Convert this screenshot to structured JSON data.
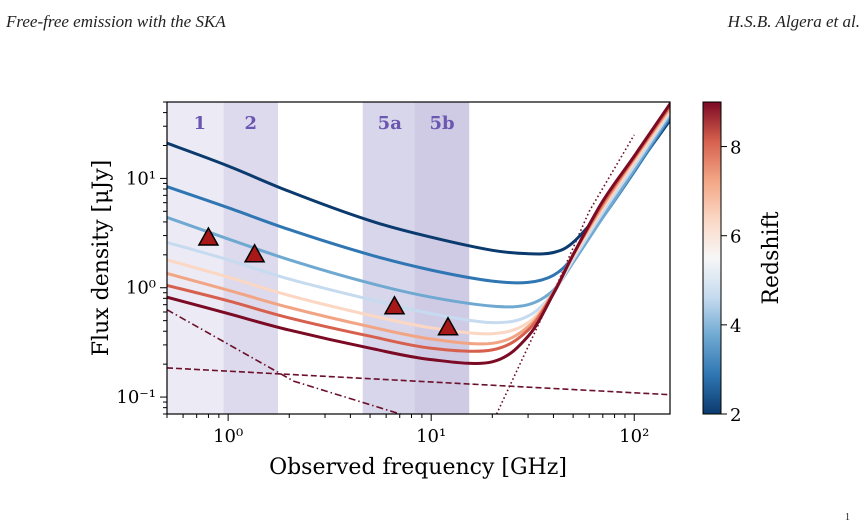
{
  "header": {
    "left": "Free-free emission with the SKA",
    "right": "H.S.B. Algera et al."
  },
  "page_mark": "1",
  "chart_data": {
    "type": "line",
    "xscale": "log",
    "yscale": "log",
    "xlabel": "Observed frequency [GHz]",
    "ylabel": "Flux density [μJy]",
    "xlim": [
      0.5,
      150
    ],
    "ylim": [
      0.07,
      50
    ],
    "xticks": [
      {
        "value": 1,
        "label": "10⁰"
      },
      {
        "value": 10,
        "label": "10¹"
      },
      {
        "value": 100,
        "label": "10²"
      }
    ],
    "yticks": [
      {
        "value": 0.1,
        "label": "10⁻¹"
      },
      {
        "value": 1,
        "label": "10⁰"
      },
      {
        "value": 10,
        "label": "10¹"
      }
    ],
    "bands": [
      {
        "label": "1",
        "range": [
          0.35,
          1.05
        ],
        "color": "#ecebf5"
      },
      {
        "label": "2",
        "range": [
          0.95,
          1.76
        ],
        "color": "#dcdaec"
      },
      {
        "label": "5a",
        "range": [
          4.6,
          8.5
        ],
        "color": "#d8d6ea"
      },
      {
        "label": "5b",
        "range": [
          8.3,
          15.4
        ],
        "color": "#cfcbe5"
      }
    ],
    "band_label_color": "#6b57b0",
    "series": [
      {
        "z": 2,
        "color": "#0b3a6e",
        "values": [
          [
            0.5,
            21
          ],
          [
            1,
            13
          ],
          [
            2,
            7.6
          ],
          [
            5,
            4.1
          ],
          [
            10,
            2.9
          ],
          [
            20,
            2.2
          ],
          [
            30,
            2.05
          ],
          [
            40,
            2.1
          ],
          [
            50,
            2.6
          ],
          [
            70,
            5.2
          ],
          [
            100,
            12
          ],
          [
            150,
            34
          ]
        ]
      },
      {
        "z": 3,
        "color": "#2f76b2",
        "values": [
          [
            0.5,
            8.4
          ],
          [
            1,
            5.4
          ],
          [
            2,
            3.4
          ],
          [
            5,
            2.0
          ],
          [
            10,
            1.45
          ],
          [
            20,
            1.15
          ],
          [
            30,
            1.12
          ],
          [
            40,
            1.3
          ],
          [
            50,
            1.9
          ],
          [
            70,
            4.4
          ],
          [
            100,
            11.5
          ],
          [
            150,
            36
          ]
        ]
      },
      {
        "z": 4,
        "color": "#6fa9d2",
        "values": [
          [
            0.5,
            4.4
          ],
          [
            1,
            2.8
          ],
          [
            2,
            1.8
          ],
          [
            5,
            1.1
          ],
          [
            10,
            0.82
          ],
          [
            20,
            0.68
          ],
          [
            30,
            0.7
          ],
          [
            40,
            0.95
          ],
          [
            50,
            1.7
          ],
          [
            70,
            4.4
          ],
          [
            100,
            12
          ],
          [
            150,
            38
          ]
        ]
      },
      {
        "z": 5,
        "color": "#c6dbef",
        "values": [
          [
            0.5,
            2.6
          ],
          [
            1,
            1.8
          ],
          [
            2,
            1.2
          ],
          [
            5,
            0.78
          ],
          [
            10,
            0.58
          ],
          [
            20,
            0.48
          ],
          [
            30,
            0.55
          ],
          [
            40,
            0.9
          ],
          [
            50,
            1.8
          ],
          [
            70,
            4.9
          ],
          [
            100,
            13
          ],
          [
            150,
            40
          ]
        ]
      },
      {
        "z": 6,
        "color": "#fbd7c4",
        "values": [
          [
            0.5,
            1.8
          ],
          [
            1,
            1.25
          ],
          [
            2,
            0.85
          ],
          [
            5,
            0.56
          ],
          [
            10,
            0.43
          ],
          [
            20,
            0.38
          ],
          [
            30,
            0.48
          ],
          [
            40,
            0.9
          ],
          [
            50,
            1.9
          ],
          [
            70,
            5.3
          ],
          [
            100,
            14
          ],
          [
            150,
            42
          ]
        ]
      },
      {
        "z": 7,
        "color": "#f2a584",
        "values": [
          [
            0.5,
            1.35
          ],
          [
            1,
            0.95
          ],
          [
            2,
            0.66
          ],
          [
            5,
            0.44
          ],
          [
            10,
            0.34
          ],
          [
            20,
            0.31
          ],
          [
            30,
            0.44
          ],
          [
            40,
            0.9
          ],
          [
            50,
            2.0
          ],
          [
            70,
            5.6
          ],
          [
            100,
            15
          ],
          [
            150,
            44
          ]
        ]
      },
      {
        "z": 8,
        "color": "#d6604d",
        "values": [
          [
            0.5,
            1.05
          ],
          [
            1,
            0.76
          ],
          [
            2,
            0.53
          ],
          [
            5,
            0.36
          ],
          [
            10,
            0.28
          ],
          [
            20,
            0.27
          ],
          [
            30,
            0.41
          ],
          [
            40,
            0.9
          ],
          [
            50,
            2.0
          ],
          [
            70,
            5.9
          ],
          [
            100,
            15.5
          ],
          [
            150,
            46
          ]
        ]
      },
      {
        "z": 9,
        "color": "#7b0a24",
        "values": [
          [
            0.5,
            0.82
          ],
          [
            1,
            0.58
          ],
          [
            2,
            0.41
          ],
          [
            5,
            0.28
          ],
          [
            10,
            0.22
          ],
          [
            20,
            0.21
          ],
          [
            30,
            0.36
          ],
          [
            40,
            0.88
          ],
          [
            50,
            2.0
          ],
          [
            70,
            6.2
          ],
          [
            100,
            16
          ],
          [
            150,
            48
          ]
        ]
      }
    ],
    "component_lines": [
      {
        "style": "dashdot",
        "color": "#6b0f2a",
        "values": [
          [
            0.5,
            0.63
          ],
          [
            2.1,
            0.14
          ],
          [
            8,
            0.065
          ]
        ]
      },
      {
        "style": "dashed",
        "color": "#6b0f2a",
        "values": [
          [
            0.5,
            0.185
          ],
          [
            150,
            0.105
          ]
        ]
      },
      {
        "style": "dotted",
        "color": "#6b0f2a",
        "values": [
          [
            21,
            0.07
          ],
          [
            40,
            0.9
          ],
          [
            60,
            5
          ],
          [
            100,
            25
          ]
        ]
      }
    ],
    "markers": [
      {
        "x": 0.8,
        "y": 2.85
      },
      {
        "x": 1.35,
        "y": 2.0
      },
      {
        "x": 6.6,
        "y": 0.67
      },
      {
        "x": 12.1,
        "y": 0.43
      }
    ],
    "marker_fill": "#a81818",
    "colorbar": {
      "label": "Redshift",
      "min": 2,
      "max": 9,
      "ticks": [
        2,
        4,
        6,
        8
      ],
      "colors": [
        "#0b3a6e",
        "#2f76b2",
        "#6fa9d2",
        "#c6dbef",
        "#f7f7f7",
        "#fbd7c4",
        "#f2a584",
        "#d6604d",
        "#7b0a24"
      ]
    }
  }
}
